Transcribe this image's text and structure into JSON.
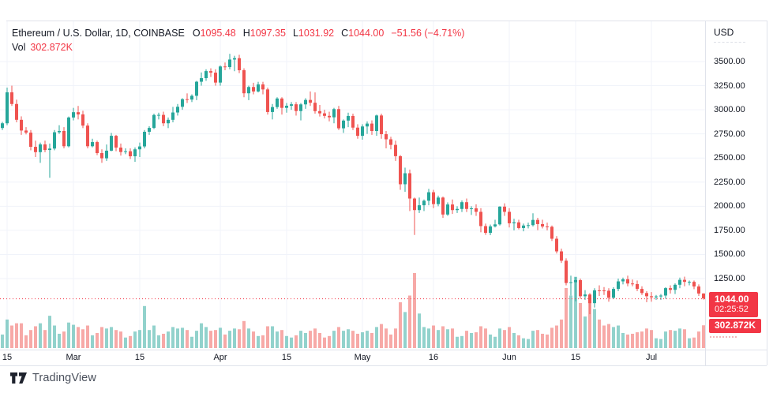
{
  "header": {
    "title": "Ethereum / U.S. Dollar, 1D, COINBASE",
    "ohlc": {
      "o_label": "O",
      "o_value": "1095.48",
      "h_label": "H",
      "h_value": "1097.35",
      "l_label": "L",
      "l_value": "1031.92",
      "c_label": "C",
      "c_value": "1044.00",
      "change_value": "−51.56 (−4.71%)"
    },
    "volume": {
      "label": "Vol",
      "value": "302.872K"
    }
  },
  "price_axis": {
    "currency_label": "USD",
    "ticks": [
      "3500.00",
      "3250.00",
      "3000.00",
      "2750.00",
      "2500.00",
      "2250.00",
      "2000.00",
      "1750.00",
      "1500.00",
      "1250.00"
    ],
    "price_badge": {
      "price": "1044.00",
      "countdown": "02:25:52"
    },
    "volume_badge": {
      "value": "302.872K"
    }
  },
  "time_axis": {
    "labels": [
      {
        "text": "15",
        "index": 2
      },
      {
        "text": "Mar",
        "index": 16
      },
      {
        "text": "15",
        "index": 30
      },
      {
        "text": "Apr",
        "index": 47
      },
      {
        "text": "15",
        "index": 61
      },
      {
        "text": "May",
        "index": 77
      },
      {
        "text": "16",
        "index": 92
      },
      {
        "text": "Jun",
        "index": 108
      },
      {
        "text": "15",
        "index": 122
      },
      {
        "text": "Jul",
        "index": 138
      }
    ]
  },
  "footer": {
    "brand": "TradingView"
  },
  "colors": {
    "up": "#26a69a",
    "down": "#ef5350",
    "accent_red": "#f23645",
    "grid": "#f0f3fa",
    "border": "#e0e3eb",
    "text": "#131722",
    "vol_up": "rgba(38,166,154,0.5)",
    "vol_down": "rgba(239,83,80,0.5)"
  },
  "chart_data": {
    "type": "candlestick",
    "title": "Ethereum / U.S. Dollar",
    "interval": "1D",
    "exchange": "COINBASE",
    "currency": "USD",
    "legend_volume_label": "Vol",
    "last": {
      "open": 1095.48,
      "high": 1097.35,
      "low": 1031.92,
      "close": 1044.0,
      "change": -51.56,
      "change_pct": -4.71,
      "volume_k": 302.872,
      "countdown": "02:25:52"
    },
    "ylim": [
      1250,
      3500
    ],
    "y_tick_step": 250,
    "grid": true,
    "legend_position": "top-left",
    "columns": [
      "date",
      "open",
      "high",
      "low",
      "close",
      "volume_k"
    ],
    "candles": [
      [
        "Feb 13",
        2800,
        2845,
        2755,
        2811,
        150
      ],
      [
        "Feb 14",
        2811,
        2875,
        2790,
        2860,
        180
      ],
      [
        "Feb 15",
        2860,
        3230,
        2840,
        3181,
        380
      ],
      [
        "Feb 16",
        3181,
        3250,
        3040,
        3060,
        300
      ],
      [
        "Feb 17",
        3060,
        3105,
        2870,
        2896,
        330
      ],
      [
        "Feb 18",
        2896,
        2932,
        2740,
        2785,
        330
      ],
      [
        "Feb 19",
        2785,
        2820,
        2745,
        2763,
        170
      ],
      [
        "Feb 20",
        2763,
        2790,
        2580,
        2616,
        240
      ],
      [
        "Feb 21",
        2616,
        2680,
        2510,
        2561,
        290
      ],
      [
        "Feb 22",
        2561,
        2660,
        2450,
        2641,
        330
      ],
      [
        "Feb 23",
        2641,
        2680,
        2560,
        2583,
        240
      ],
      [
        "Feb 24",
        2583,
        2650,
        2295,
        2598,
        430
      ],
      [
        "Feb 25",
        2598,
        2790,
        2580,
        2767,
        300
      ],
      [
        "Feb 26",
        2767,
        2840,
        2750,
        2780,
        190
      ],
      [
        "Feb 27",
        2780,
        2820,
        2600,
        2622,
        220
      ],
      [
        "Feb 28",
        2622,
        2930,
        2610,
        2920,
        340
      ],
      [
        "Mar 1",
        2920,
        3020,
        2890,
        2975,
        310
      ],
      [
        "Mar 2",
        2975,
        3040,
        2900,
        2952,
        280
      ],
      [
        "Mar 3",
        2952,
        2990,
        2810,
        2836,
        250
      ],
      [
        "Mar 4",
        2836,
        2860,
        2600,
        2622,
        300
      ],
      [
        "Mar 5",
        2622,
        2700,
        2610,
        2665,
        170
      ],
      [
        "Mar 6",
        2665,
        2680,
        2530,
        2551,
        200
      ],
      [
        "Mar 7",
        2551,
        2590,
        2450,
        2497,
        280
      ],
      [
        "Mar 8",
        2497,
        2640,
        2470,
        2576,
        260
      ],
      [
        "Mar 9",
        2576,
        2760,
        2570,
        2730,
        280
      ],
      [
        "Mar 10",
        2730,
        2740,
        2570,
        2608,
        240
      ],
      [
        "Mar 11",
        2608,
        2650,
        2525,
        2562,
        220
      ],
      [
        "Mar 12",
        2562,
        2600,
        2540,
        2570,
        140
      ],
      [
        "Mar 13",
        2570,
        2600,
        2490,
        2518,
        160
      ],
      [
        "Mar 14",
        2518,
        2610,
        2460,
        2590,
        220
      ],
      [
        "Mar 15",
        2590,
        2660,
        2510,
        2620,
        240
      ],
      [
        "Mar 16",
        2620,
        2790,
        2600,
        2772,
        560
      ],
      [
        "Mar 17",
        2772,
        2830,
        2740,
        2812,
        240
      ],
      [
        "Mar 18",
        2812,
        2960,
        2800,
        2946,
        300
      ],
      [
        "Mar 19",
        2946,
        2970,
        2900,
        2947,
        170
      ],
      [
        "Mar 20",
        2947,
        2980,
        2830,
        2860,
        190
      ],
      [
        "Mar 21",
        2860,
        2920,
        2810,
        2896,
        220
      ],
      [
        "Mar 22",
        2896,
        3030,
        2870,
        2972,
        280
      ],
      [
        "Mar 23",
        2972,
        3060,
        2940,
        3031,
        260
      ],
      [
        "Mar 24",
        3031,
        3120,
        3000,
        3110,
        270
      ],
      [
        "Mar 25",
        3110,
        3170,
        3070,
        3106,
        240
      ],
      [
        "Mar 26",
        3106,
        3160,
        3080,
        3145,
        150
      ],
      [
        "Mar 27",
        3145,
        3300,
        3100,
        3291,
        230
      ],
      [
        "Mar 28",
        3291,
        3387,
        3250,
        3328,
        330
      ],
      [
        "Mar 29",
        3328,
        3420,
        3300,
        3401,
        280
      ],
      [
        "Mar 30",
        3401,
        3430,
        3340,
        3385,
        230
      ],
      [
        "Mar 31",
        3385,
        3420,
        3250,
        3282,
        240
      ],
      [
        "Apr 1",
        3282,
        3460,
        3250,
        3449,
        270
      ],
      [
        "Apr 2",
        3449,
        3490,
        3410,
        3443,
        180
      ],
      [
        "Apr 3",
        3443,
        3580,
        3420,
        3521,
        230
      ],
      [
        "Apr 4",
        3521,
        3560,
        3400,
        3535,
        260
      ],
      [
        "Apr 5",
        3535,
        3570,
        3380,
        3410,
        250
      ],
      [
        "Apr 6",
        3410,
        3430,
        3130,
        3171,
        360
      ],
      [
        "Apr 7",
        3171,
        3250,
        3100,
        3236,
        260
      ],
      [
        "Apr 8",
        3236,
        3280,
        3160,
        3190,
        220
      ],
      [
        "Apr 9",
        3190,
        3290,
        3180,
        3263,
        160
      ],
      [
        "Apr 10",
        3263,
        3290,
        3160,
        3211,
        170
      ],
      [
        "Apr 11",
        3211,
        3230,
        2950,
        2977,
        290
      ],
      [
        "Apr 12",
        2977,
        3060,
        2900,
        3028,
        290
      ],
      [
        "Apr 13",
        3028,
        3130,
        3010,
        3117,
        220
      ],
      [
        "Apr 14",
        3117,
        3130,
        2950,
        3020,
        240
      ],
      [
        "Apr 15",
        3020,
        3070,
        2970,
        3042,
        160
      ],
      [
        "Apr 16",
        3042,
        3080,
        3000,
        3057,
        140
      ],
      [
        "Apr 17",
        3057,
        3080,
        2940,
        2987,
        170
      ],
      [
        "Apr 18",
        2987,
        3070,
        2890,
        3056,
        230
      ],
      [
        "Apr 19",
        3056,
        3120,
        3010,
        3102,
        200
      ],
      [
        "Apr 20",
        3102,
        3190,
        3040,
        3073,
        230
      ],
      [
        "Apr 21",
        3073,
        3180,
        2960,
        2986,
        260
      ],
      [
        "Apr 22",
        2986,
        3050,
        2930,
        2963,
        200
      ],
      [
        "Apr 23",
        2963,
        3000,
        2910,
        2937,
        140
      ],
      [
        "Apr 24",
        2937,
        2980,
        2880,
        2922,
        160
      ],
      [
        "Apr 25",
        2922,
        3020,
        2860,
        3007,
        230
      ],
      [
        "Apr 26",
        3007,
        3040,
        2790,
        2808,
        280
      ],
      [
        "Apr 27",
        2808,
        2900,
        2760,
        2888,
        230
      ],
      [
        "Apr 28",
        2888,
        2970,
        2820,
        2936,
        250
      ],
      [
        "Apr 29",
        2936,
        2960,
        2790,
        2815,
        230
      ],
      [
        "Apr 30",
        2815,
        2850,
        2700,
        2730,
        190
      ],
      [
        "May 1",
        2730,
        2850,
        2690,
        2827,
        210
      ],
      [
        "May 2",
        2827,
        2880,
        2750,
        2857,
        230
      ],
      [
        "May 3",
        2857,
        2890,
        2740,
        2780,
        200
      ],
      [
        "May 4",
        2780,
        2950,
        2730,
        2941,
        280
      ],
      [
        "May 5",
        2941,
        2960,
        2700,
        2747,
        320
      ],
      [
        "May 6",
        2747,
        2780,
        2600,
        2694,
        260
      ],
      [
        "May 7",
        2694,
        2720,
        2590,
        2636,
        180
      ],
      [
        "May 8",
        2636,
        2680,
        2470,
        2519,
        260
      ],
      [
        "May 9",
        2519,
        2530,
        2170,
        2228,
        610
      ],
      [
        "May 10",
        2228,
        2400,
        2150,
        2342,
        480
      ],
      [
        "May 11",
        2342,
        2380,
        1950,
        2080,
        700
      ],
      [
        "May 12",
        2080,
        2090,
        1702,
        1960,
        1000
      ],
      [
        "May 13",
        1960,
        2090,
        1930,
        2010,
        460
      ],
      [
        "May 14",
        2010,
        2070,
        1950,
        2057,
        280
      ],
      [
        "May 15",
        2057,
        2180,
        2010,
        2145,
        260
      ],
      [
        "May 16",
        2145,
        2170,
        1980,
        2022,
        300
      ],
      [
        "May 17",
        2022,
        2110,
        2000,
        2090,
        240
      ],
      [
        "May 18",
        2090,
        2100,
        1880,
        1914,
        290
      ],
      [
        "May 19",
        1914,
        2040,
        1900,
        2018,
        250
      ],
      [
        "May 20",
        2018,
        2070,
        1920,
        1960,
        260
      ],
      [
        "May 21",
        1960,
        2000,
        1930,
        1972,
        150
      ],
      [
        "May 22",
        1972,
        2060,
        1940,
        2042,
        160
      ],
      [
        "May 23",
        2042,
        2080,
        1940,
        1972,
        230
      ],
      [
        "May 24",
        1972,
        2000,
        1910,
        1978,
        200
      ],
      [
        "May 25",
        1978,
        2020,
        1900,
        1942,
        210
      ],
      [
        "May 26",
        1942,
        1980,
        1730,
        1794,
        290
      ],
      [
        "May 27",
        1794,
        1820,
        1703,
        1724,
        260
      ],
      [
        "May 28",
        1724,
        1810,
        1700,
        1791,
        180
      ],
      [
        "May 29",
        1791,
        1860,
        1780,
        1812,
        150
      ],
      [
        "May 30",
        1812,
        2000,
        1800,
        1996,
        260
      ],
      [
        "May 31",
        1996,
        2030,
        1900,
        1942,
        240
      ],
      [
        "Jun 1",
        1942,
        1980,
        1780,
        1823,
        280
      ],
      [
        "Jun 2",
        1823,
        1870,
        1750,
        1833,
        200
      ],
      [
        "Jun 3",
        1833,
        1860,
        1760,
        1774,
        170
      ],
      [
        "Jun 4",
        1774,
        1820,
        1740,
        1800,
        130
      ],
      [
        "Jun 5",
        1800,
        1830,
        1770,
        1804,
        120
      ],
      [
        "Jun 6",
        1804,
        1927,
        1790,
        1858,
        230
      ],
      [
        "Jun 7",
        1858,
        1880,
        1752,
        1815,
        240
      ],
      [
        "Jun 8",
        1815,
        1860,
        1770,
        1790,
        190
      ],
      [
        "Jun 9",
        1790,
        1830,
        1750,
        1787,
        180
      ],
      [
        "Jun 10",
        1787,
        1800,
        1640,
        1663,
        270
      ],
      [
        "Jun 11",
        1663,
        1690,
        1510,
        1532,
        300
      ],
      [
        "Jun 12",
        1532,
        1560,
        1412,
        1435,
        380
      ],
      [
        "Jun 13",
        1435,
        1460,
        1180,
        1204,
        800
      ],
      [
        "Jun 14",
        1204,
        1280,
        1075,
        1212,
        700
      ],
      [
        "Jun 15",
        1212,
        1265,
        1014,
        1234,
        950
      ],
      [
        "Jun 16",
        1234,
        1250,
        1040,
        1067,
        600
      ],
      [
        "Jun 17",
        1067,
        1130,
        1030,
        1085,
        420
      ],
      [
        "Jun 18",
        1085,
        1100,
        881,
        995,
        650
      ],
      [
        "Jun 19",
        995,
        1150,
        950,
        1128,
        520
      ],
      [
        "Jun 20",
        1128,
        1180,
        1070,
        1127,
        380
      ],
      [
        "Jun 21",
        1127,
        1162,
        1080,
        1124,
        300
      ],
      [
        "Jun 22",
        1124,
        1150,
        1010,
        1051,
        320
      ],
      [
        "Jun 23",
        1051,
        1160,
        1040,
        1143,
        280
      ],
      [
        "Jun 24",
        1143,
        1250,
        1120,
        1221,
        300
      ],
      [
        "Jun 25",
        1221,
        1260,
        1190,
        1243,
        200
      ],
      [
        "Jun 26",
        1243,
        1280,
        1170,
        1199,
        180
      ],
      [
        "Jun 27",
        1199,
        1240,
        1170,
        1193,
        190
      ],
      [
        "Jun 28",
        1193,
        1230,
        1120,
        1143,
        210
      ],
      [
        "Jun 29",
        1143,
        1170,
        1080,
        1100,
        220
      ],
      [
        "Jun 30",
        1100,
        1120,
        1005,
        1067,
        260
      ],
      [
        "Jul 1",
        1067,
        1110,
        1010,
        1056,
        240
      ],
      [
        "Jul 2",
        1056,
        1080,
        1030,
        1065,
        130
      ],
      [
        "Jul 3",
        1065,
        1090,
        1030,
        1074,
        120
      ],
      [
        "Jul 4",
        1074,
        1160,
        1040,
        1151,
        220
      ],
      [
        "Jul 5",
        1151,
        1180,
        1095,
        1133,
        240
      ],
      [
        "Jul 6",
        1133,
        1200,
        1090,
        1186,
        230
      ],
      [
        "Jul 7",
        1186,
        1260,
        1150,
        1237,
        260
      ],
      [
        "Jul 8",
        1237,
        1270,
        1170,
        1216,
        250
      ],
      [
        "Jul 9",
        1216,
        1230,
        1180,
        1216,
        130
      ],
      [
        "Jul 10",
        1216,
        1230,
        1140,
        1168,
        140
      ],
      [
        "Jul 11",
        1168,
        1190,
        1070,
        1095,
        220
      ],
      [
        "Jul 12",
        1095.48,
        1097.35,
        1031.92,
        1044.0,
        302.872
      ]
    ]
  }
}
